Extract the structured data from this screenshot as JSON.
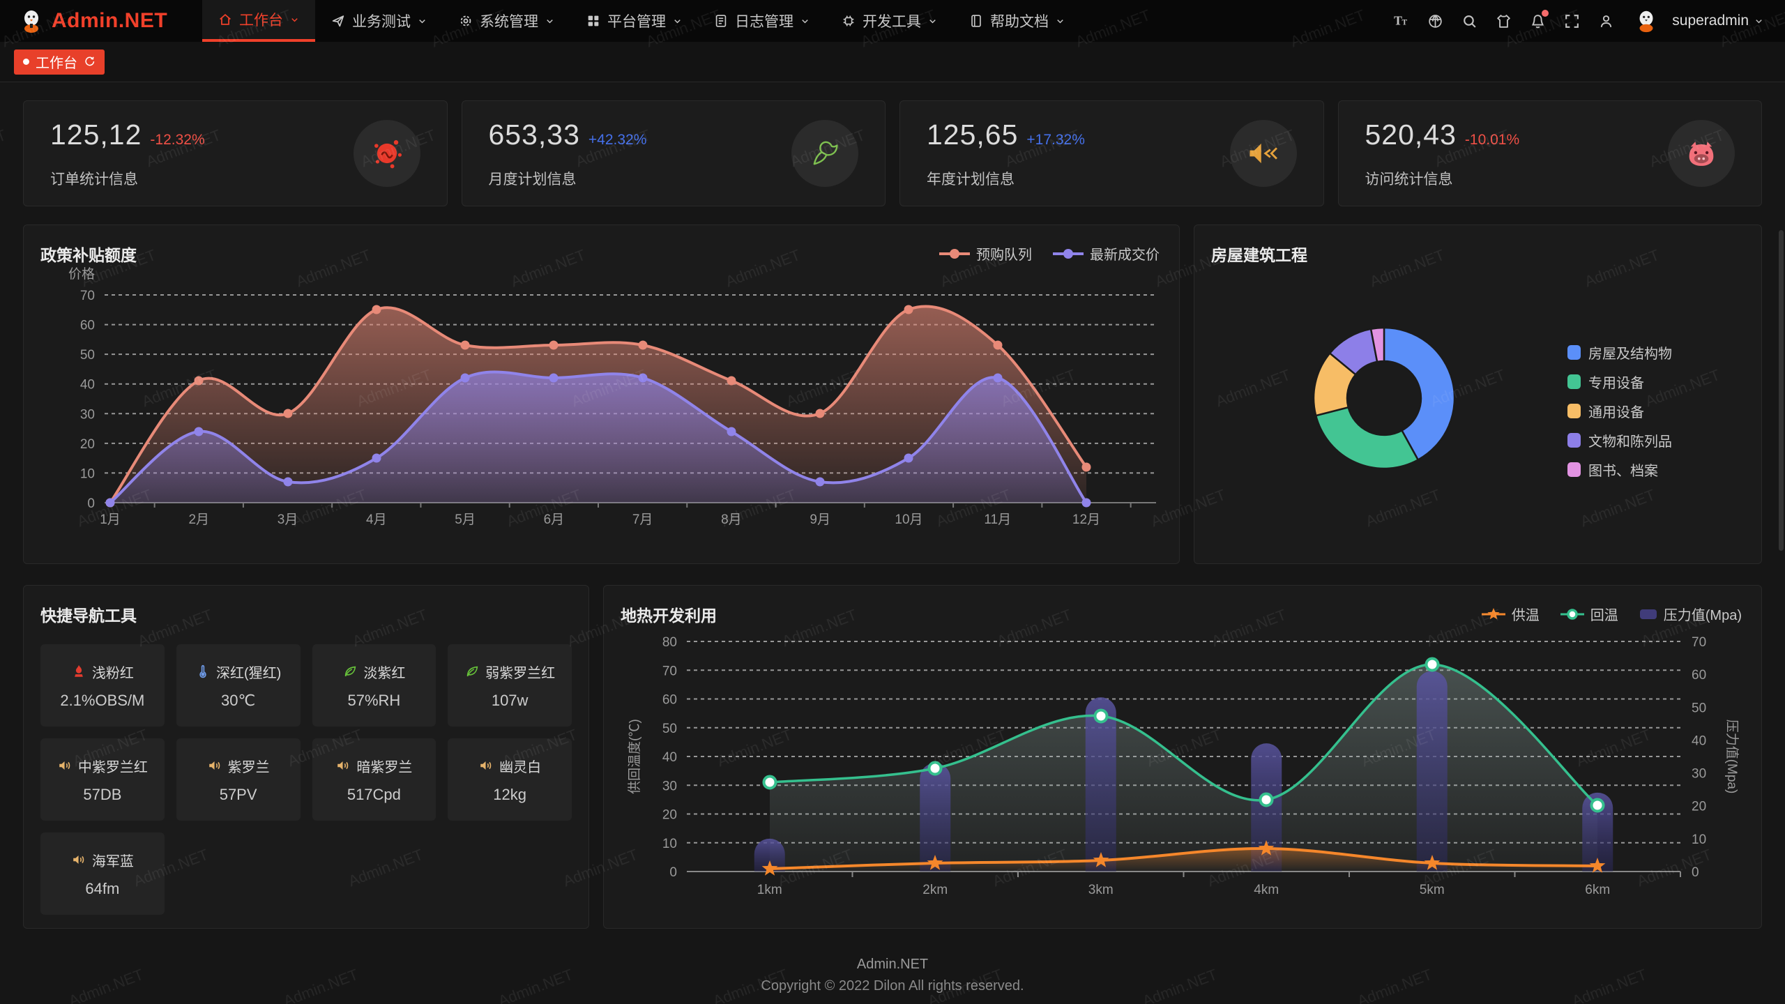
{
  "app": {
    "watermark": "Admin.NET"
  },
  "header": {
    "brand": "Admin.NET",
    "menu": [
      {
        "label": "工作台",
        "icon": "home",
        "active": true
      },
      {
        "label": "业务测试",
        "icon": "send",
        "active": false
      },
      {
        "label": "系统管理",
        "icon": "gear",
        "active": false
      },
      {
        "label": "平台管理",
        "icon": "grid",
        "active": false
      },
      {
        "label": "日志管理",
        "icon": "log",
        "active": false
      },
      {
        "label": "开发工具",
        "icon": "tools",
        "active": false
      },
      {
        "label": "帮助文档",
        "icon": "docs",
        "active": false
      }
    ],
    "tools": [
      {
        "name": "font-size",
        "badge": false
      },
      {
        "name": "language",
        "badge": false
      },
      {
        "name": "search",
        "badge": false
      },
      {
        "name": "theme",
        "badge": false
      },
      {
        "name": "notification",
        "badge": true
      },
      {
        "name": "fullscreen",
        "badge": false
      },
      {
        "name": "user",
        "badge": false
      }
    ],
    "username": "superadmin"
  },
  "tabbar": {
    "tabs": [
      {
        "label": "工作台",
        "active": true
      }
    ]
  },
  "colors": {
    "up": "#4570ea",
    "down": "#ef5046",
    "accent": "#e8402a"
  },
  "stat_cards": [
    {
      "value": "125,12",
      "delta": "-12.32%",
      "trend": "down",
      "label": "订单统计信息",
      "icon": "splash",
      "icon_color": "#e8392a"
    },
    {
      "value": "653,33",
      "delta": "+42.32%",
      "trend": "up",
      "label": "月度计划信息",
      "icon": "dove",
      "icon_color": "#7ec050"
    },
    {
      "value": "125,65",
      "delta": "+17.32%",
      "trend": "up",
      "label": "年度计划信息",
      "icon": "speaker-mute",
      "icon_color": "#e6a23c"
    },
    {
      "value": "520,43",
      "delta": "-10.01%",
      "trend": "down",
      "label": "访问统计信息",
      "icon": "cat",
      "icon_color": "#f2707a"
    }
  ],
  "panels": {
    "policy": {
      "title": "政策补贴额度"
    },
    "housing": {
      "title": "房屋建筑工程"
    },
    "quick_nav": {
      "title": "快捷导航工具"
    },
    "geothermal": {
      "title": "地热开发利用"
    }
  },
  "quick_nav_items": [
    {
      "icon": "fire",
      "icon_color": "#e23c2f",
      "label": "浅粉红",
      "value": "2.1%OBS/M"
    },
    {
      "icon": "thermometer",
      "icon_color": "#6f9be8",
      "label": "深红(猩红)",
      "value": "30℃"
    },
    {
      "icon": "leaf",
      "icon_color": "#67c23a",
      "label": "淡紫红",
      "value": "57%RH"
    },
    {
      "icon": "leaf",
      "icon_color": "#67c23a",
      "label": "弱紫罗兰红",
      "value": "107w"
    },
    {
      "icon": "speaker",
      "icon_color": "#e6b36b",
      "label": "中紫罗兰红",
      "value": "57DB"
    },
    {
      "icon": "speaker",
      "icon_color": "#e6b36b",
      "label": "紫罗兰",
      "value": "57PV"
    },
    {
      "icon": "speaker",
      "icon_color": "#e6b36b",
      "label": "暗紫罗兰",
      "value": "517Cpd"
    },
    {
      "icon": "speaker",
      "icon_color": "#e6b36b",
      "label": "幽灵白",
      "value": "12kg"
    },
    {
      "icon": "speaker",
      "icon_color": "#e6b36b",
      "label": "海军蓝",
      "value": "64fm"
    }
  ],
  "footer": {
    "line1": "Admin.NET",
    "line2": "Copyright © 2022 Dilon All rights reserved."
  },
  "chart_data": [
    {
      "type": "line",
      "title": "政策补贴额度",
      "ylabel": "价格",
      "ylim": [
        0,
        70
      ],
      "ytick_step": 10,
      "grid": "dashed",
      "legend_position": "top-right",
      "categories": [
        "1月",
        "2月",
        "3月",
        "4月",
        "5月",
        "6月",
        "7月",
        "8月",
        "9月",
        "10月",
        "11月",
        "12月"
      ],
      "series": [
        {
          "name": "预购队列",
          "color": "#e88a78",
          "values": [
            0,
            41,
            30,
            65,
            53,
            53,
            53,
            41,
            30,
            65,
            53,
            12
          ]
        },
        {
          "name": "最新成交价",
          "color": "#9084ea",
          "values": [
            0,
            24,
            7,
            15,
            42,
            42,
            42,
            24,
            7,
            15,
            42,
            0
          ]
        }
      ]
    },
    {
      "type": "pie",
      "title": "房屋建筑工程",
      "donut": true,
      "legend_position": "right",
      "labels": [
        "房屋及结构物",
        "专用设备",
        "通用设备",
        "文物和陈列品",
        "图书、档案"
      ],
      "values": [
        42,
        29,
        15,
        11,
        3
      ],
      "colors": [
        "#5b8ff9",
        "#43c593",
        "#f7bd66",
        "#8d7fe8",
        "#e293e2"
      ]
    },
    {
      "type": "mixed",
      "title": "地热开发利用",
      "categories": [
        "1km",
        "2km",
        "3km",
        "4km",
        "5km",
        "6km"
      ],
      "ylabel_left": "供回温度(℃)",
      "ylim_left": [
        0,
        80
      ],
      "ylabel_right": "压力值(Mpa)",
      "ylim_right": [
        0,
        70
      ],
      "grid": "dashed",
      "legend_position": "top-right",
      "series": [
        {
          "name": "供温",
          "chart": "line",
          "marker": "star",
          "axis": "left",
          "color": "#f5872b",
          "values": [
            1,
            3,
            4,
            8,
            3,
            2
          ]
        },
        {
          "name": "回温",
          "chart": "line",
          "marker": "circle",
          "axis": "left",
          "color": "#35c08e",
          "values": [
            31,
            36,
            54,
            25,
            72,
            23
          ]
        },
        {
          "name": "压力值(Mpa)",
          "chart": "bar",
          "axis": "right",
          "color": "#44407e",
          "values": [
            10,
            33,
            53,
            39,
            61,
            24
          ]
        }
      ]
    }
  ]
}
